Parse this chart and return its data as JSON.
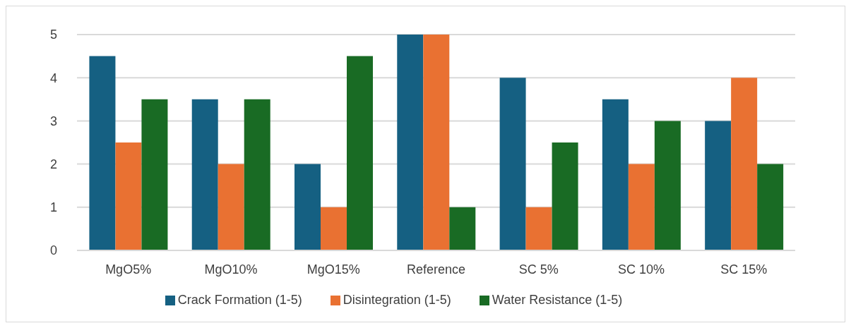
{
  "chart_data": {
    "type": "bar",
    "categories": [
      "MgO5%",
      "MgO10%",
      "MgO15%",
      "Reference",
      "SC 5%",
      "SC 10%",
      "SC 15%"
    ],
    "series": [
      {
        "name": "Crack Formation (1-5)",
        "color": "#156082",
        "values": [
          4.5,
          3.5,
          2,
          5,
          4,
          3.5,
          3
        ]
      },
      {
        "name": "Disintegration (1-5)",
        "color": "#e97132",
        "values": [
          2.5,
          2,
          1,
          5,
          1,
          2,
          4
        ]
      },
      {
        "name": "Water Resistance (1-5)",
        "color": "#196b24",
        "values": [
          3.5,
          3.5,
          4.5,
          1,
          2.5,
          3,
          2
        ]
      }
    ],
    "ylim": [
      0,
      5
    ],
    "yticks": [
      0,
      1,
      2,
      3,
      4,
      5
    ],
    "grid": "y",
    "legend": "bottom"
  }
}
